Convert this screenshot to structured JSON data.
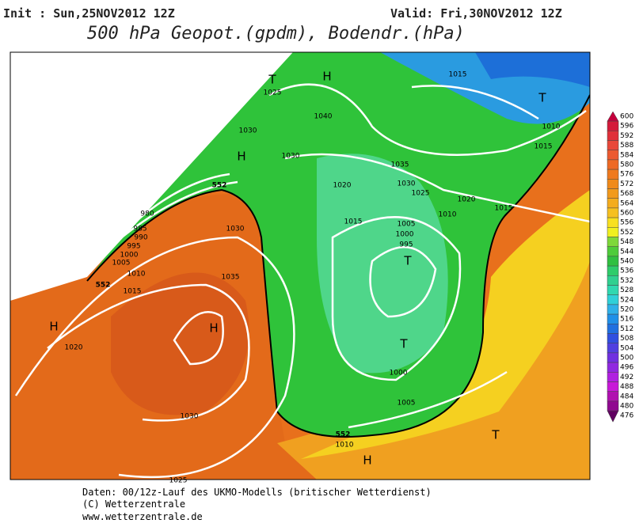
{
  "header": {
    "init": "Init : Sun,25NOV2012 12Z",
    "valid": "Valid: Fri,30NOV2012 12Z",
    "title": "500 hPa Geopot.(gpdm), Bodendr.(hPa)"
  },
  "map": {
    "isobar_labels": [
      "1025",
      "1040",
      "1030",
      "1030",
      "1035",
      "1020",
      "1030",
      "1025",
      "1020",
      "1015",
      "1010",
      "1015",
      "1015",
      "1010",
      "1015",
      "1005",
      "1000",
      "995",
      "1030",
      "1035",
      "1010",
      "1015",
      "1020",
      "1030",
      "1025",
      "1000",
      "1005",
      "1010",
      "980",
      "985",
      "990",
      "995",
      "1000",
      "1005"
    ],
    "contour_labels": [
      "552",
      "552",
      "552"
    ],
    "pressure_centers": [
      "T",
      "H",
      "H",
      "T",
      "T",
      "H",
      "H",
      "T",
      "T",
      "H"
    ]
  },
  "colorbar": {
    "labels": [
      "600",
      "596",
      "592",
      "588",
      "584",
      "580",
      "576",
      "572",
      "568",
      "564",
      "560",
      "556",
      "552",
      "548",
      "544",
      "540",
      "536",
      "532",
      "528",
      "524",
      "520",
      "516",
      "512",
      "508",
      "504",
      "500",
      "496",
      "492",
      "488",
      "484",
      "480",
      "476"
    ]
  },
  "footer": {
    "lines": [
      "Daten: 00/12z-Lauf des UKMO-Modells (britischer Wetterdienst)",
      "(C) Wetterzentrale",
      "www.wetterzentrale.de"
    ]
  }
}
